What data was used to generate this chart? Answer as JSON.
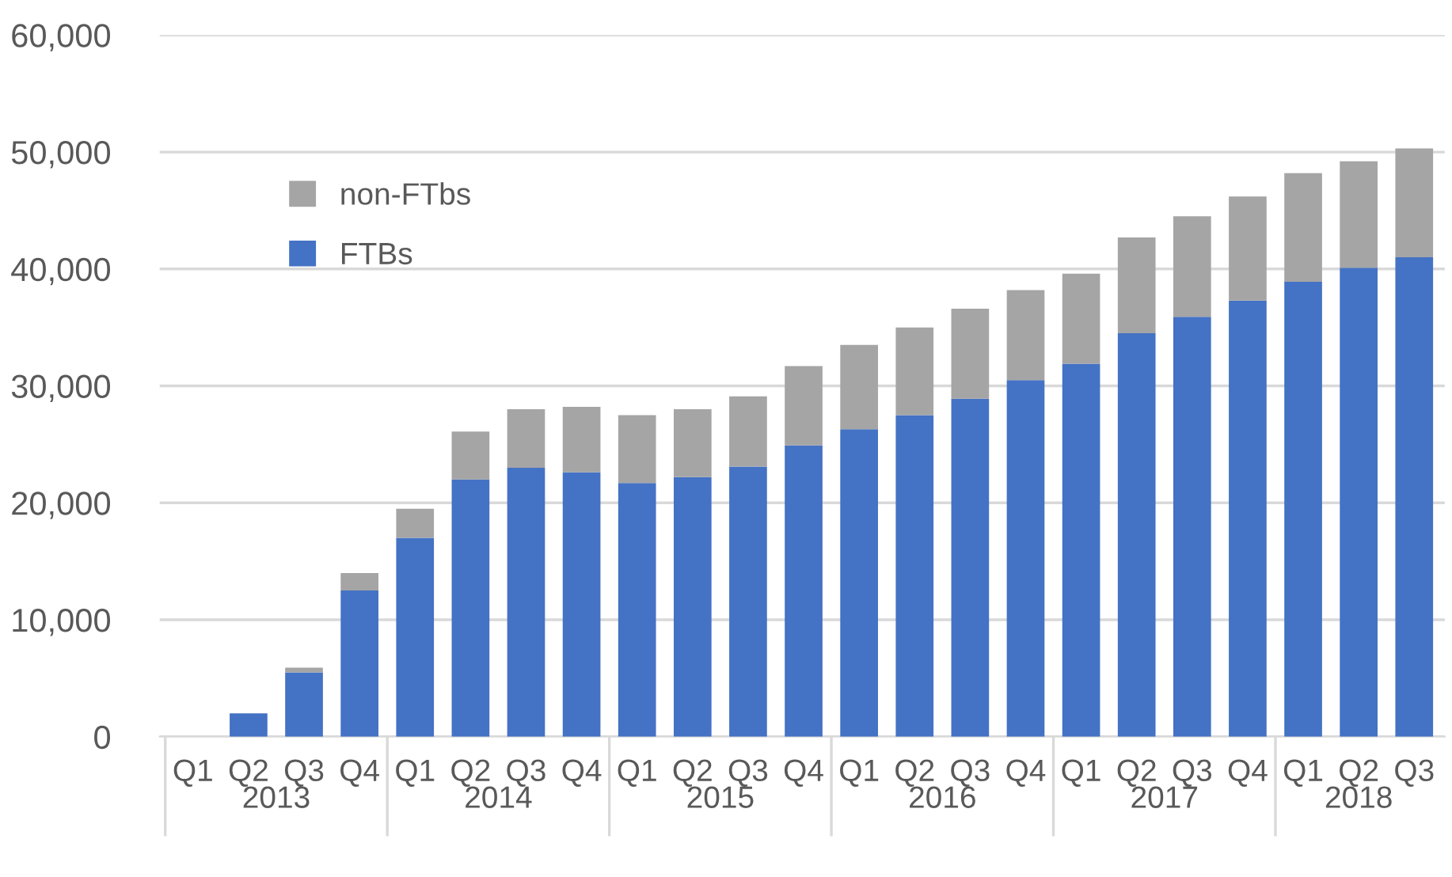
{
  "chart_data": {
    "type": "bar",
    "stacked": true,
    "categories": [
      "Q1",
      "Q2",
      "Q3",
      "Q4",
      "Q1",
      "Q2",
      "Q3",
      "Q4",
      "Q1",
      "Q2",
      "Q3",
      "Q4",
      "Q1",
      "Q2",
      "Q3",
      "Q4",
      "Q1",
      "Q2",
      "Q3",
      "Q4",
      "Q1",
      "Q2",
      "Q3"
    ],
    "series": [
      {
        "name": "FTBs",
        "color": "#4472c4",
        "values": [
          0,
          2000,
          5500,
          12500,
          17000,
          22000,
          23000,
          22600,
          21700,
          22200,
          23100,
          24900,
          26300,
          27500,
          28900,
          30500,
          31900,
          34500,
          35900,
          37300,
          38900,
          40100,
          41000
        ]
      },
      {
        "name": "non-FTbs",
        "color": "#a5a5a5",
        "values": [
          0,
          0,
          400,
          1500,
          2500,
          4100,
          5000,
          5600,
          5800,
          5800,
          6000,
          6800,
          7200,
          7500,
          7700,
          7700,
          7700,
          8200,
          8600,
          8900,
          9300,
          9100,
          9300
        ]
      }
    ],
    "annotations": [
      "2013",
      "2014",
      "2015",
      "2016",
      "2017",
      "2018"
    ],
    "ylim": [
      0,
      60000
    ],
    "yticks": [
      {
        "value": 0,
        "label": "0"
      },
      {
        "value": 10000,
        "label": "10,000"
      },
      {
        "value": 20000,
        "label": "20,000"
      },
      {
        "value": 30000,
        "label": "30,000"
      },
      {
        "value": 40000,
        "label": "40,000"
      },
      {
        "value": 50000,
        "label": "50,000"
      },
      {
        "value": 60000,
        "label": "60,000"
      }
    ],
    "grid": "y",
    "legend": "top left"
  }
}
